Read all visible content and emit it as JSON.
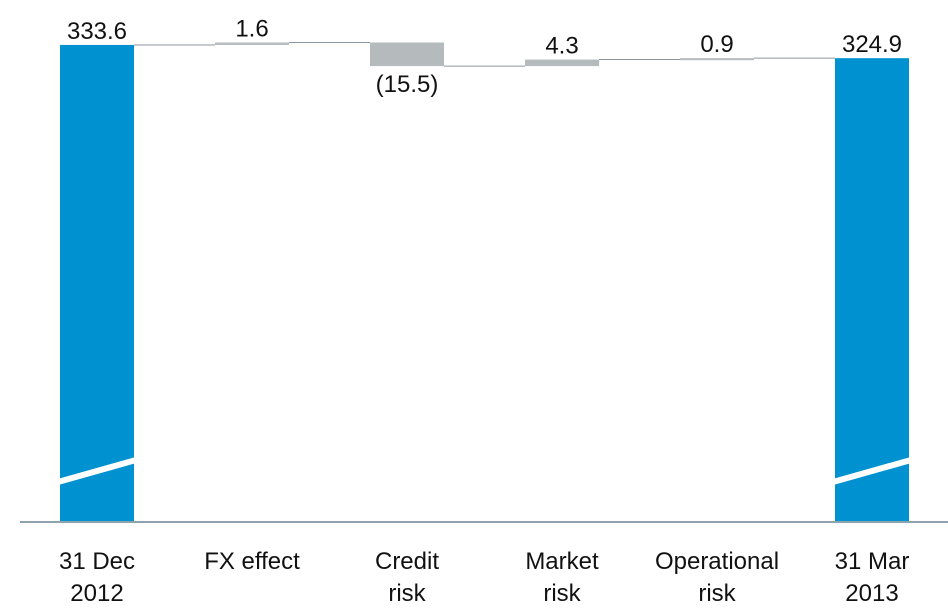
{
  "chart_data": {
    "type": "waterfall",
    "categories": [
      "31 Dec\n2012",
      "FX effect",
      "Credit\nrisk",
      "Market\nrisk",
      "Operational\nrisk",
      "31 Mar\n2013"
    ],
    "values": [
      333.6,
      1.6,
      -15.5,
      4.3,
      0.9,
      324.9
    ],
    "value_labels": [
      "333.6",
      "1.6",
      "(15.5)",
      "4.3",
      "0.9",
      "324.9"
    ],
    "measure": [
      "total",
      "relative",
      "relative",
      "relative",
      "relative",
      "total"
    ],
    "total_color": "#0091d1",
    "delta_color": "#b5babd",
    "ylim": [
      20,
      350
    ]
  }
}
